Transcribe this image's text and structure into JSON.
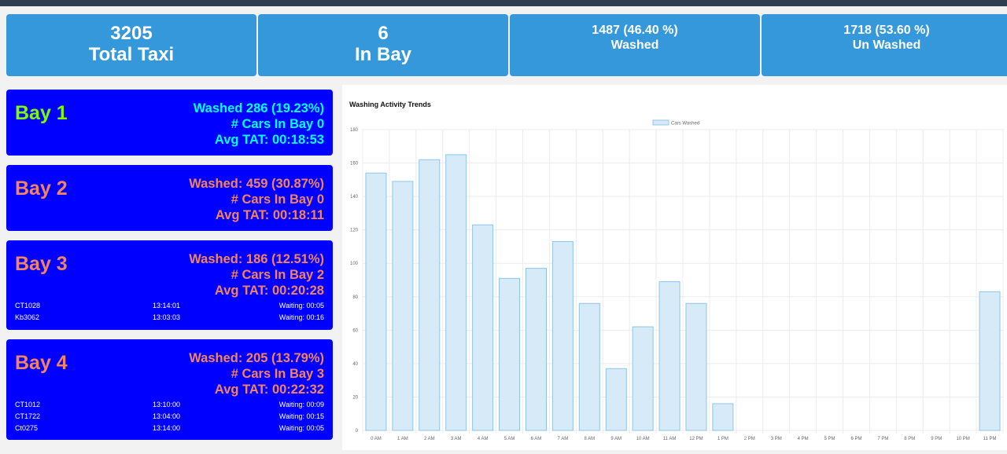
{
  "summary": [
    {
      "value": "3205",
      "label": "Total Taxi"
    },
    {
      "value": "6",
      "label": "In Bay"
    },
    {
      "value": "1487  (46.40 %)",
      "label": "Washed"
    },
    {
      "value": "1718 (53.60 %)",
      "label": "Un Washed"
    }
  ],
  "bays": [
    {
      "name": "Bay 1",
      "washed": "Washed 286 (19.23%)",
      "cars": "# Cars In Bay 0",
      "tat": "Avg TAT: 00:18:53",
      "name_color": "#7cfc00",
      "stat_color": "#00ffff",
      "queue": []
    },
    {
      "name": "Bay 2",
      "washed": "Washed: 459 (30.87%)",
      "cars": "# Cars In Bay 0",
      "tat": "Avg TAT: 00:18:11",
      "name_color": "#f4845f",
      "stat_color": "#f4845f",
      "queue": []
    },
    {
      "name": "Bay 3",
      "washed": "Washed: 186 (12.51%)",
      "cars": "# Cars In Bay 2",
      "tat": "Avg TAT: 00:20:28",
      "name_color": "#f4845f",
      "stat_color": "#f4845f",
      "queue": [
        {
          "id": "CT1028",
          "time": "13:14:01",
          "wait": "Waiting: 00:05"
        },
        {
          "id": "Kb3062",
          "time": "13:03:03",
          "wait": "Waiting: 00:16"
        }
      ]
    },
    {
      "name": "Bay 4",
      "washed": "Washed: 205 (13.79%)",
      "cars": "# Cars In Bay 3",
      "tat": "Avg TAT: 00:22:32",
      "name_color": "#f4845f",
      "stat_color": "#f4845f",
      "queue": [
        {
          "id": "CT1012",
          "time": "13:10:00",
          "wait": "Waiting: 00:09"
        },
        {
          "id": "CT1722",
          "time": "13:04:00",
          "wait": "Waiting: 00:15"
        },
        {
          "id": "Ct0275",
          "time": "13:14:00",
          "wait": "Waiting: 00:05"
        }
      ]
    }
  ],
  "chart_data": {
    "type": "bar",
    "title": "Washing Activity Trends",
    "legend": "Cars Washed",
    "legend_position": "top",
    "categories": [
      "0 AM",
      "1 AM",
      "2 AM",
      "3 AM",
      "4 AM",
      "5 AM",
      "6 AM",
      "7 AM",
      "8 AM",
      "9 AM",
      "10 AM",
      "11 AM",
      "12 PM",
      "1 PM",
      "2 PM",
      "3 PM",
      "4 PM",
      "5 PM",
      "6 PM",
      "7 PM",
      "8 PM",
      "9 PM",
      "10 PM",
      "11 PM"
    ],
    "values": [
      154,
      149,
      162,
      165,
      123,
      91,
      97,
      113,
      76,
      37,
      62,
      89,
      76,
      16,
      0,
      0,
      0,
      0,
      0,
      0,
      0,
      0,
      0,
      83
    ],
    "ylim": [
      0,
      180
    ],
    "yticks": [
      0,
      20,
      40,
      60,
      80,
      100,
      120,
      140,
      160,
      180
    ],
    "grid": true,
    "bar_fill": "#d6eaf8",
    "bar_stroke": "#8ec5e8"
  }
}
